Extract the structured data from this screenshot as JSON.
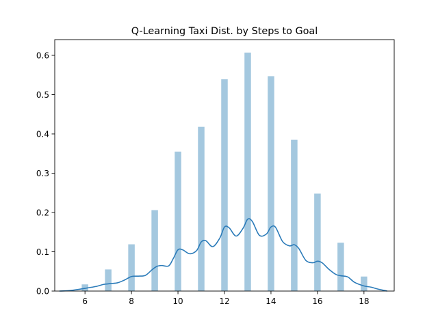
{
  "chart_data": {
    "type": "bar",
    "title": "Q-Learning Taxi Dist. by Steps to Goal",
    "xlabel": "",
    "ylabel": "",
    "xlim": [
      4.7,
      19.3
    ],
    "ylim": [
      0,
      0.64
    ],
    "grid": false,
    "x_ticks": [
      6,
      8,
      10,
      12,
      14,
      16,
      18
    ],
    "y_ticks": [
      0.0,
      0.1,
      0.2,
      0.3,
      0.4,
      0.5,
      0.6
    ],
    "x_tick_labels": [
      "6",
      "8",
      "10",
      "12",
      "14",
      "16",
      "18"
    ],
    "y_tick_labels": [
      "0.0",
      "0.1",
      "0.2",
      "0.3",
      "0.4",
      "0.5",
      "0.6"
    ],
    "bar_color": "#a4c8df",
    "bar_width": 0.28,
    "histogram": {
      "x": [
        6,
        7,
        8,
        9,
        10,
        11,
        12,
        13,
        14,
        15,
        16,
        17,
        18
      ],
      "values": [
        0.017,
        0.055,
        0.119,
        0.206,
        0.355,
        0.418,
        0.539,
        0.607,
        0.547,
        0.385,
        0.248,
        0.123,
        0.037
      ]
    },
    "kde": {
      "color": "#2b7bb9",
      "x": [
        4.9,
        5.3,
        5.7,
        6.1,
        6.5,
        6.8,
        7.1,
        7.4,
        7.7,
        8.0,
        8.3,
        8.6,
        8.9,
        9.1,
        9.3,
        9.6,
        9.8,
        10.0,
        10.2,
        10.5,
        10.8,
        11.0,
        11.2,
        11.5,
        11.8,
        12.0,
        12.2,
        12.5,
        12.8,
        13.0,
        13.2,
        13.5,
        13.8,
        14.0,
        14.2,
        14.5,
        14.8,
        15.0,
        15.2,
        15.5,
        15.8,
        16.0,
        16.2,
        16.5,
        16.8,
        17.0,
        17.3,
        17.6,
        18.0,
        18.3,
        18.6,
        19.0
      ],
      "y": [
        0.0,
        0.001,
        0.004,
        0.008,
        0.012,
        0.017,
        0.019,
        0.021,
        0.028,
        0.037,
        0.038,
        0.04,
        0.055,
        0.063,
        0.065,
        0.064,
        0.083,
        0.105,
        0.105,
        0.095,
        0.103,
        0.125,
        0.128,
        0.113,
        0.135,
        0.163,
        0.161,
        0.14,
        0.16,
        0.183,
        0.177,
        0.142,
        0.145,
        0.163,
        0.162,
        0.126,
        0.115,
        0.118,
        0.108,
        0.078,
        0.072,
        0.076,
        0.072,
        0.055,
        0.042,
        0.039,
        0.036,
        0.022,
        0.013,
        0.01,
        0.005,
        0.0
      ]
    }
  }
}
